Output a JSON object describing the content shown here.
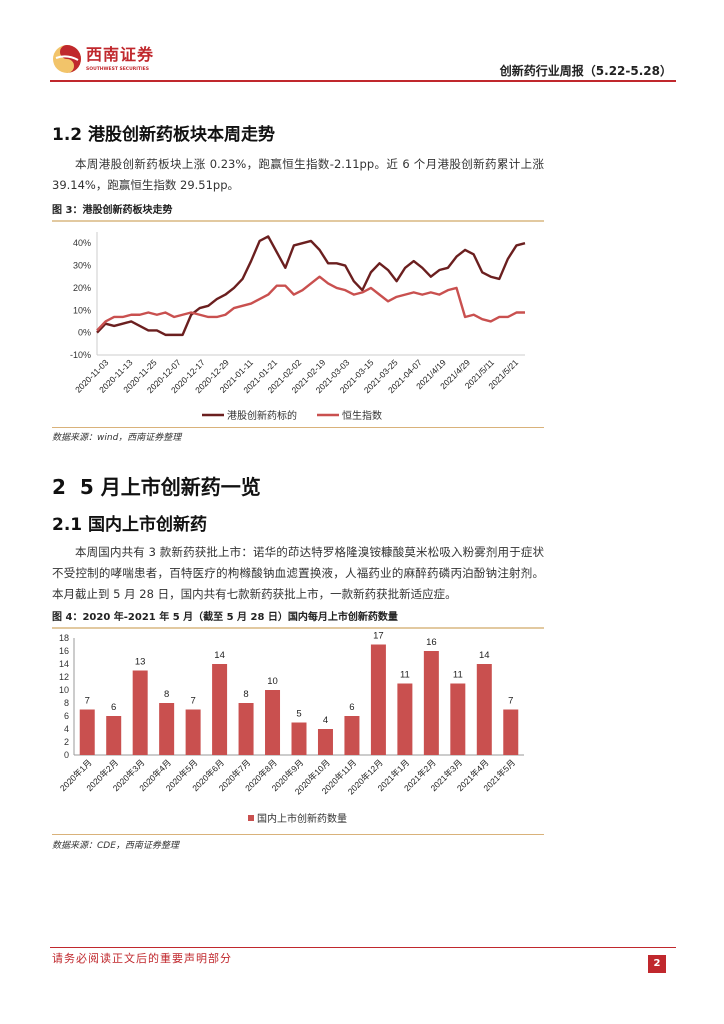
{
  "header": {
    "logo_cn": "西南证券",
    "logo_en": "SOUTHWEST SECURITIES",
    "report_title": "创新药行业周报（5.22-5.28）"
  },
  "section_1_2": {
    "heading": "1.2 港股创新药板块本周走势",
    "paragraph": "本周港股创新药板块上涨 0.23%，跑赢恒生指数-2.11pp。近 6 个月港股创新药累计上涨 39.14%，跑赢恒生指数 29.51pp。",
    "figure_title": "图 3：港股创新药板块走势",
    "source": "数据来源：wind，西南证券整理"
  },
  "section_2": {
    "heading": "2  5 月上市创新药一览"
  },
  "section_2_1": {
    "heading": "2.1 国内上市创新药",
    "paragraph": "本周国内共有 3 款新药获批上市：诺华的茚达特罗格隆溴铵糠酸莫米松吸入粉雾剂用于症状不受控制的哮喘患者，百特医疗的枸橼酸钠血滤置换液，人福药业的麻醉药磷丙泊酚钠注射剂。本月截止到 5 月 28 日，国内共有七款新药获批上市，一款新药获批新适应症。",
    "figure_title": "图 4：2020 年-2021 年 5 月（截至 5 月 28 日）国内每月上市创新药数量",
    "source": "数据来源：CDE，西南证券整理"
  },
  "footer": {
    "disclaimer": "请务必阅读正文后的重要声明部分",
    "page_number": "2"
  },
  "chart_data": [
    {
      "type": "line",
      "title": "港股创新药板块走势",
      "x_tick_labels": [
        "2020-11-03",
        "2020-11-13",
        "2020-11-25",
        "2020-12-07",
        "2020-12-17",
        "2020-12-29",
        "2021-01-11",
        "2021-01-21",
        "2021-02-02",
        "2021-02-19",
        "2021-03-03",
        "2021-03-15",
        "2021-03-25",
        "2021-04-07",
        "2021/4/19",
        "2021/4/29",
        "2021/5/11",
        "2021/5/21"
      ],
      "y_tick_labels": [
        "-10%",
        "0%",
        "10%",
        "20%",
        "30%",
        "40%"
      ],
      "ylim": [
        -10,
        45
      ],
      "y_ticks": [
        -10,
        0,
        10,
        20,
        30,
        40
      ],
      "legend_position": "bottom",
      "series": [
        {
          "name": "港股创新药标的",
          "color": "#6b1f1f",
          "values": [
            0,
            4,
            3,
            4,
            5,
            3,
            1,
            1,
            -1,
            -1,
            -1,
            8,
            11,
            12,
            15,
            17,
            20,
            24,
            32,
            41,
            43,
            36,
            29,
            39,
            40,
            41,
            37,
            31,
            31,
            30,
            23,
            19,
            27,
            31,
            28,
            23,
            29,
            32,
            29,
            25,
            28,
            29,
            34,
            37,
            35,
            27,
            25,
            24,
            33,
            39,
            40
          ]
        },
        {
          "name": "恒生指数",
          "color": "#c9504f",
          "values": [
            1,
            5,
            7,
            7,
            8,
            8,
            9,
            8,
            9,
            7,
            8,
            9,
            8,
            7,
            7,
            8,
            11,
            12,
            13,
            15,
            17,
            21,
            21,
            17,
            19,
            22,
            25,
            22,
            20,
            19,
            17,
            18,
            20,
            17,
            14,
            16,
            17,
            18,
            17,
            18,
            17,
            19,
            20,
            7,
            8,
            6,
            5,
            7,
            7,
            9,
            9
          ]
        }
      ]
    },
    {
      "type": "bar",
      "title": "2020 年-2021 年 5 月（截至 5 月 28 日）国内每月上市创新药数量",
      "categories": [
        "2020年1月",
        "2020年2月",
        "2020年3月",
        "2020年4月",
        "2020年5月",
        "2020年6月",
        "2020年7月",
        "2020年8月",
        "2020年9月",
        "2020年10月",
        "2020年11月",
        "2020年12月",
        "2021年1月",
        "2021年2月",
        "2021年3月",
        "2021年4月",
        "2021年5月"
      ],
      "series": [
        {
          "name": "国内上市创新药数量",
          "color": "#c9504f",
          "values": [
            7,
            6,
            13,
            8,
            7,
            14,
            8,
            10,
            5,
            4,
            6,
            17,
            11,
            16,
            11,
            14,
            7
          ]
        }
      ],
      "y_ticks": [
        0,
        2,
        4,
        6,
        8,
        10,
        12,
        14,
        16,
        18
      ],
      "ylim": [
        0,
        18
      ],
      "legend_position": "bottom"
    }
  ]
}
